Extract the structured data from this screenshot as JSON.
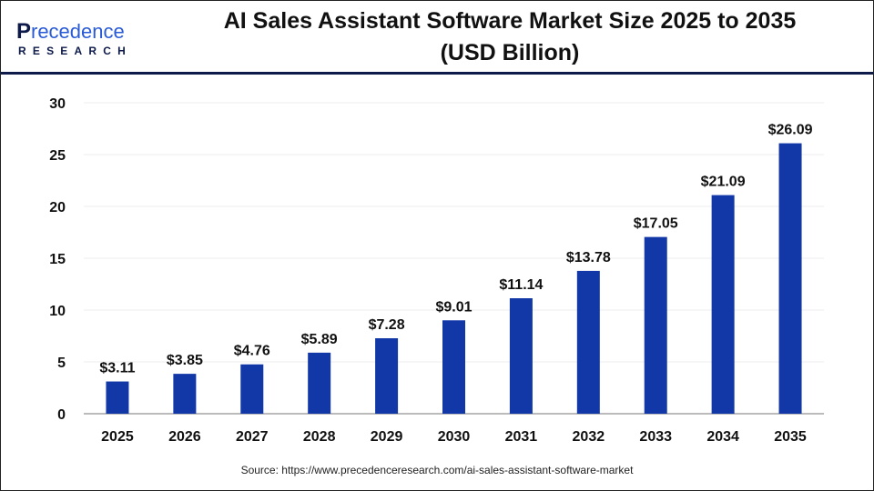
{
  "logo": {
    "line1": "Precedence",
    "line2": "RESEARCH"
  },
  "header": {
    "title_line1": "AI Sales Assistant Software Market Size 2025 to 2035",
    "title_line2": "(USD Billion)"
  },
  "source": "Source: https://www.precedenceresearch.com/ai-sales-assistant-software-market",
  "chart_data": {
    "type": "bar",
    "title": "AI Sales Assistant Software Market Size 2025 to 2035 (USD Billion)",
    "categories": [
      "2025",
      "2026",
      "2027",
      "2028",
      "2029",
      "2030",
      "2031",
      "2032",
      "2033",
      "2034",
      "2035"
    ],
    "values": [
      3.11,
      3.85,
      4.76,
      5.89,
      7.28,
      9.01,
      11.14,
      13.78,
      17.05,
      21.09,
      26.09
    ],
    "data_labels": [
      "$3.11",
      "$3.85",
      "$4.76",
      "$5.89",
      "$7.28",
      "$9.01",
      "$11.14",
      "$13.78",
      "$17.05",
      "$21.09",
      "$26.09"
    ],
    "yticks": [
      0,
      5,
      10,
      15,
      20,
      25,
      30
    ],
    "ylim": [
      0,
      30
    ],
    "xlabel": "",
    "ylabel": "",
    "grid": true,
    "bar_color": "#1238a8"
  }
}
